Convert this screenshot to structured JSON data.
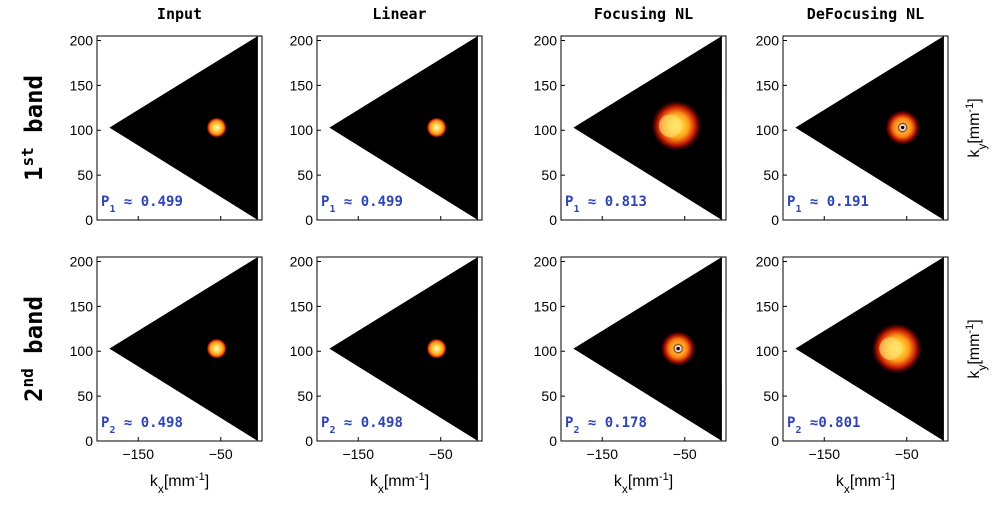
{
  "chart_data": {
    "type": "heatmap",
    "column_titles": [
      "Input",
      "Linear",
      "Focusing NL",
      "DeFocusing NL"
    ],
    "row_labels": [
      {
        "base": "1",
        "sup": "st",
        "rest": " band"
      },
      {
        "base": "2",
        "sup": "nd",
        "rest": " band"
      }
    ],
    "xlabel": {
      "base": "k",
      "sub": "x",
      "unit": "[mm",
      "unit_sup": "-1",
      "close": "]"
    },
    "ylabel_right": {
      "base": "k",
      "sub": "y",
      "unit": "[mm",
      "unit_sup": "-1",
      "close": "]"
    },
    "xlim": [
      -200,
      0
    ],
    "ylim": [
      0,
      205
    ],
    "xticks": [
      -150,
      -50
    ],
    "yticks": [
      0,
      50,
      100,
      150,
      200
    ],
    "domain": "triangle",
    "triangle_vertices": [
      [
        -185,
        103
      ],
      [
        -5,
        205
      ],
      [
        -5,
        0
      ]
    ],
    "panels": [
      [
        {
          "label_prefix": "P",
          "label_sub": "1",
          "label_value": " ≈ 0.499",
          "blob": {
            "cx": -55,
            "cy": 103,
            "r": 8,
            "shape": "dot"
          }
        },
        {
          "label_prefix": "P",
          "label_sub": "1",
          "label_value": " ≈ 0.499",
          "blob": {
            "cx": -55,
            "cy": 103,
            "r": 8,
            "shape": "dot"
          }
        },
        {
          "label_prefix": "P",
          "label_sub": "1",
          "label_value": " ≈ 0.813",
          "blob": {
            "cx": -60,
            "cy": 105,
            "r": 28,
            "shape": "broad"
          }
        },
        {
          "label_prefix": "P",
          "label_sub": "1",
          "label_value": " ≈ 0.191",
          "blob": {
            "cx": -55,
            "cy": 103,
            "r": 16,
            "shape": "ring"
          }
        }
      ],
      [
        {
          "label_prefix": "P",
          "label_sub": "2",
          "label_value": " ≈ 0.498",
          "blob": {
            "cx": -55,
            "cy": 103,
            "r": 8,
            "shape": "dot"
          }
        },
        {
          "label_prefix": "P",
          "label_sub": "2",
          "label_value": " ≈ 0.498",
          "blob": {
            "cx": -55,
            "cy": 103,
            "r": 8,
            "shape": "dot"
          }
        },
        {
          "label_prefix": "P",
          "label_sub": "2",
          "label_value": " ≈ 0.178",
          "blob": {
            "cx": -58,
            "cy": 103,
            "r": 16,
            "shape": "ring"
          }
        },
        {
          "label_prefix": "P",
          "label_sub": "2",
          "label_value": " ≈0.801",
          "blob": {
            "cx": -62,
            "cy": 103,
            "r": 28,
            "shape": "broad"
          }
        }
      ]
    ],
    "colors": {
      "background": "#ffffff",
      "domain": "#000000",
      "label": "#2f45b5",
      "hot_core": "#ffffc8",
      "hot_mid": "#ff9a1a",
      "hot_edge": "#8b0000"
    }
  }
}
